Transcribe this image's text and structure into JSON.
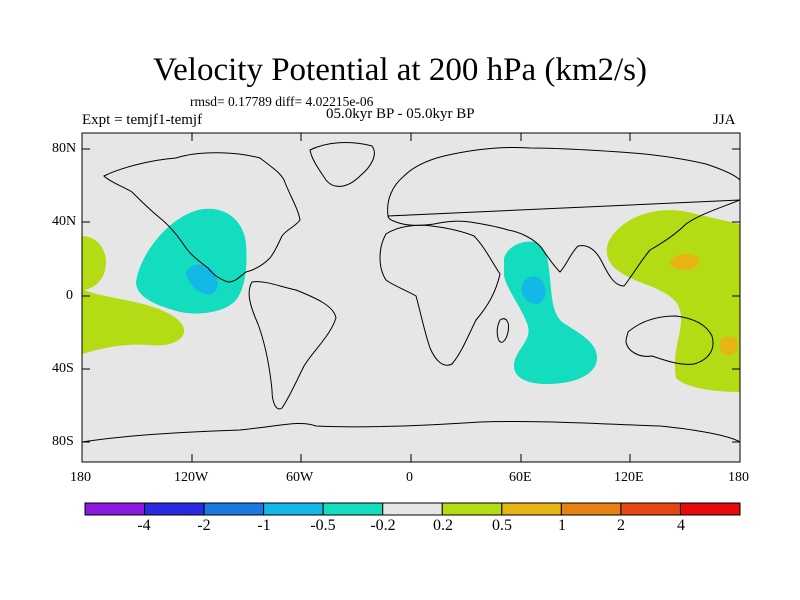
{
  "title": "Velocity Potential at 200 hPa (km2/s)",
  "stats": "rmsd= 0.17789 diff= 4.02215e-06",
  "experiment": "Expt = temjf1-temjf",
  "period": "05.0kyr BP - 05.0kyr BP",
  "season": "JJA",
  "lat_labels": [
    "80N",
    "40N",
    "0",
    "40S",
    "80S"
  ],
  "lon_labels": [
    "180",
    "120W",
    "60W",
    "0",
    "60E",
    "120E",
    "180"
  ],
  "colorbar": {
    "colors": [
      "#8a1ae0",
      "#2a2ae0",
      "#1a78e0",
      "#14b8e6",
      "#14dcbe",
      "#e6e6e6",
      "#b4dc14",
      "#e6b414",
      "#e68214",
      "#e64614",
      "#e60a0a"
    ],
    "labels": [
      "-4",
      "-2",
      "-1",
      "-0.5",
      "-0.2",
      "0.2",
      "0.5",
      "1",
      "2",
      "4"
    ]
  },
  "colors": {
    "background": "#e6e6e6",
    "coastline": "#000000"
  }
}
